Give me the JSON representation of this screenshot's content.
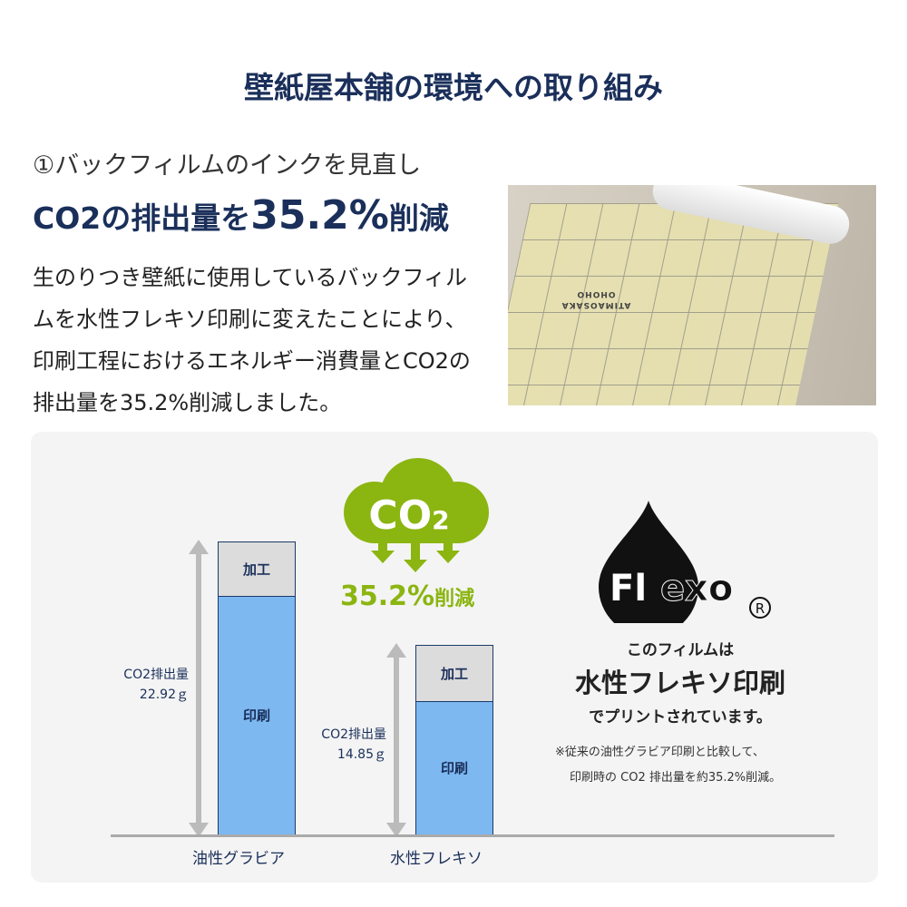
{
  "title": "壁紙屋本舗の環境への取り組み",
  "section": {
    "heading1": "①バックフィルムのインクを見直し",
    "heading2_pre": "CO2の排出量を",
    "heading2_value": "35.2%",
    "heading2_post": "削減",
    "body": "生のりつき壁紙に使用しているバックフィルムを水性フレキソ印刷に変えたことにより、印刷工程におけるエネルギー消費量とCO2の排出量を35.2%削減しました。"
  },
  "photo": {
    "film_print": "ATIMAOSAKA OHOHO"
  },
  "badge": {
    "cloud_text": "CO2",
    "reduction": "35.2%",
    "reduction_suffix": "削減",
    "color": "#8bb510"
  },
  "chart_data": {
    "type": "bar",
    "stacked": true,
    "categories": [
      "油性グラビア",
      "水性フレキソ"
    ],
    "totals": [
      22.92,
      14.85
    ],
    "total_labels": [
      {
        "line1": "CO2排出量",
        "line2": "22.92ｇ"
      },
      {
        "line1": "CO2排出量",
        "line2": "14.85ｇ"
      }
    ],
    "series": [
      {
        "name": "印刷",
        "values": [
          18.7,
          10.5
        ],
        "color": "#7db8f0"
      },
      {
        "name": "加工",
        "values": [
          4.22,
          4.35
        ],
        "color": "#dcdcdc"
      }
    ],
    "unit": "g"
  },
  "flexo": {
    "logo": "Flexo",
    "line1": "このフィルムは",
    "line2": "水性フレキソ印刷",
    "line3": "でプリントされています。",
    "note1": "※従来の油性グラビア印刷と比較して、",
    "note2": "印刷時の CO2 排出量を約35.2%削減。"
  }
}
